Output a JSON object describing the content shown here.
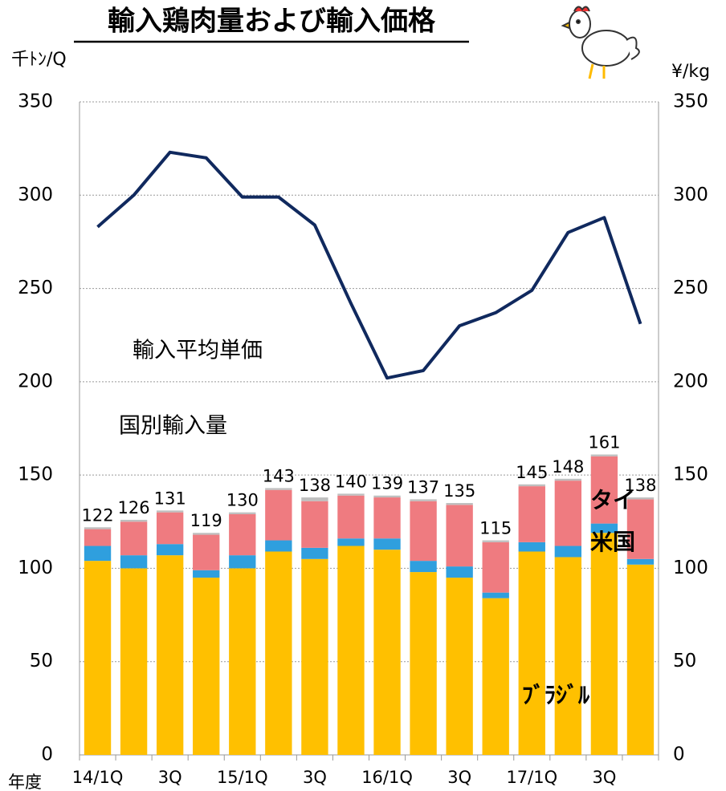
{
  "chart_data": {
    "type": "bar",
    "title": "輸入鶏肉量および輸入価格",
    "ylabel": "千ﾄﾝ/Q",
    "y2label": "¥/kg",
    "xlabel": "年度",
    "annotations": [
      "輸入平均単価",
      "国別輸入量"
    ],
    "categories": [
      "14/1Q",
      null,
      "3Q",
      null,
      "15/1Q",
      null,
      "3Q",
      null,
      "16/1Q",
      null,
      "3Q",
      null,
      "17/1Q",
      null,
      "3Q",
      null
    ],
    "series": [
      {
        "name": "ﾌﾞﾗｼﾞﾙ",
        "color": "#ffc000",
        "values": [
          104,
          100,
          107,
          95,
          100,
          109,
          105,
          112,
          110,
          98,
          95,
          84,
          109,
          106,
          119,
          102
        ]
      },
      {
        "name": "米国",
        "color": "#2f9fde",
        "values": [
          8,
          7,
          6,
          4,
          7,
          6,
          6,
          4,
          6,
          6,
          6,
          3,
          5,
          6,
          5,
          3
        ]
      },
      {
        "name": "タイ",
        "color": "#ef7b80",
        "values": [
          9,
          18,
          17,
          19,
          22,
          27,
          25,
          23,
          22,
          32,
          33,
          27,
          30,
          35,
          36,
          32
        ]
      },
      {
        "color": "#bfbfbf",
        "values": [
          1,
          1,
          1,
          1,
          1,
          1,
          2,
          1,
          1,
          1,
          1,
          1,
          1,
          1,
          1,
          1
        ]
      },
      {
        "type": "line",
        "axis": "y2",
        "color": "#10295e",
        "values": [
          283,
          300,
          323,
          320,
          299,
          299,
          284,
          242,
          202,
          206,
          230,
          237,
          249,
          280,
          288,
          231
        ]
      }
    ],
    "totals": [
      122,
      126,
      131,
      119,
      130,
      143,
      138,
      140,
      139,
      137,
      135,
      115,
      145,
      148,
      161,
      138
    ],
    "ylim": [
      0,
      350
    ],
    "yticks": [
      0,
      50,
      100,
      150,
      200,
      250,
      300,
      350
    ],
    "y2lim": [
      0,
      350
    ],
    "y2ticks": [
      0,
      50,
      100,
      150,
      200,
      250,
      300,
      350
    ],
    "grid": true
  }
}
